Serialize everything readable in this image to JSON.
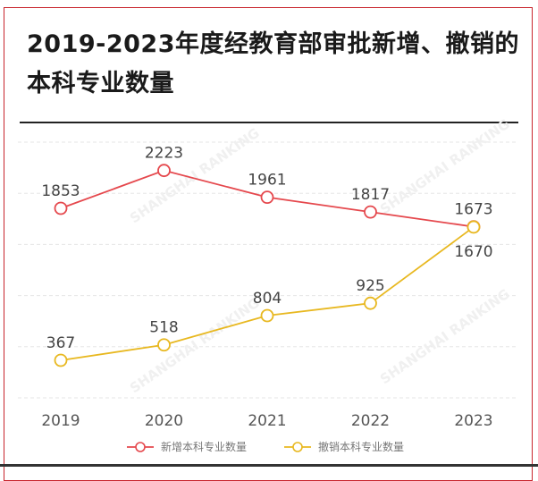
{
  "chart_data": {
    "type": "line",
    "title": "2019-2023年度经教育部审批新增、撤销的本科专业数量",
    "categories": [
      "2019",
      "2020",
      "2021",
      "2022",
      "2023"
    ],
    "series": [
      {
        "name": "新增本科专业数量",
        "values": [
          1853,
          2223,
          1961,
          1817,
          1673
        ],
        "color": "#e5484d"
      },
      {
        "name": "撤销本科专业数量",
        "values": [
          367,
          518,
          804,
          925,
          1670
        ],
        "color": "#e8b820"
      }
    ],
    "ylim": [
      0,
      2500
    ],
    "grid": true,
    "legend": "bottom",
    "data_labels": true,
    "watermark": "SHANGHAI RANKING"
  }
}
